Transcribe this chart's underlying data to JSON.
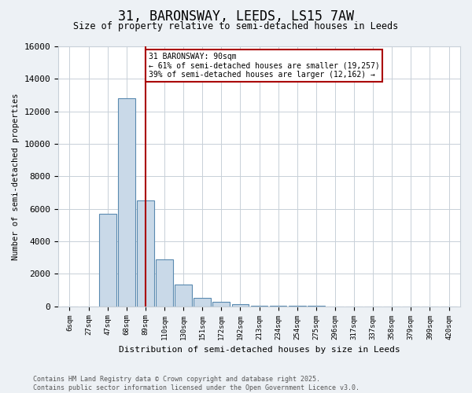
{
  "title": "31, BARONSWAY, LEEDS, LS15 7AW",
  "subtitle": "Size of property relative to semi-detached houses in Leeds",
  "xlabel": "Distribution of semi-detached houses by size in Leeds",
  "ylabel": "Number of semi-detached properties",
  "bins": [
    "6sqm",
    "27sqm",
    "47sqm",
    "68sqm",
    "89sqm",
    "110sqm",
    "130sqm",
    "151sqm",
    "172sqm",
    "192sqm",
    "213sqm",
    "234sqm",
    "254sqm",
    "275sqm",
    "296sqm",
    "317sqm",
    "337sqm",
    "358sqm",
    "379sqm",
    "399sqm",
    "420sqm"
  ],
  "values": [
    0,
    0,
    5700,
    12800,
    6500,
    2900,
    1350,
    500,
    270,
    120,
    50,
    30,
    15,
    10,
    5,
    3,
    2,
    1,
    1,
    0,
    0
  ],
  "bar_color": "#c9d9e8",
  "bar_edge_color": "#5a8ab0",
  "vline_x_index": 4,
  "vline_color": "#aa0000",
  "annotation_title": "31 BARONSWAY: 90sqm",
  "annotation_line1": "← 61% of semi-detached houses are smaller (19,257)",
  "annotation_line2": "39% of semi-detached houses are larger (12,162) →",
  "annotation_box_color": "#aa0000",
  "ylim": [
    0,
    16000
  ],
  "yticks": [
    0,
    2000,
    4000,
    6000,
    8000,
    10000,
    12000,
    14000,
    16000
  ],
  "footer_line1": "Contains HM Land Registry data © Crown copyright and database right 2025.",
  "footer_line2": "Contains public sector information licensed under the Open Government Licence v3.0.",
  "bg_color": "#edf1f5",
  "plot_bg_color": "#ffffff",
  "grid_color": "#c8d0d8"
}
